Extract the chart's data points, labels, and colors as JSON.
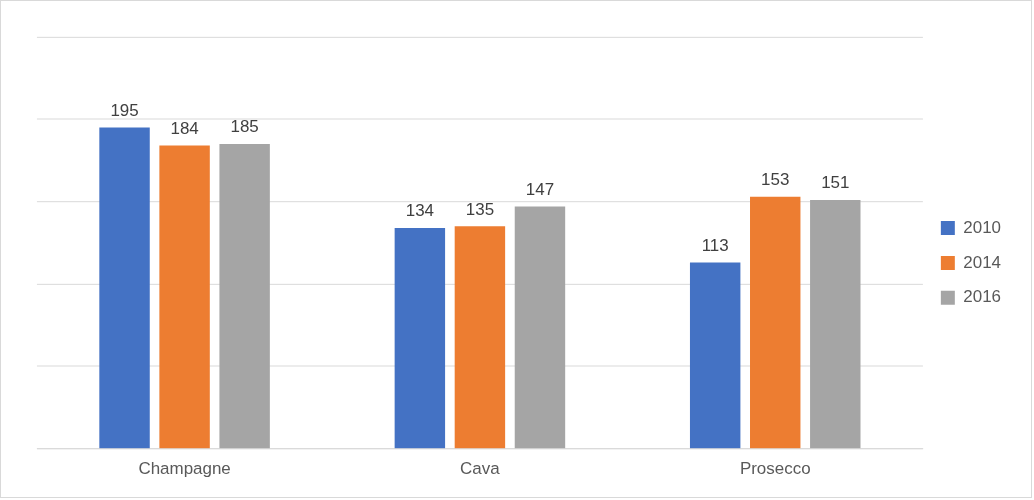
{
  "chart_data": {
    "type": "bar",
    "categories": [
      "Champagne",
      "Cava",
      "Prosecco"
    ],
    "series": [
      {
        "name": "2010",
        "color": "#4472c4",
        "values": [
          195,
          134,
          113
        ]
      },
      {
        "name": "2014",
        "color": "#ed7d31",
        "values": [
          184,
          135,
          153
        ]
      },
      {
        "name": "2016",
        "color": "#a5a5a5",
        "values": [
          185,
          147,
          151
        ]
      }
    ],
    "ylim": [
      0,
      250
    ],
    "yticks": [
      {
        "value": 0,
        "label": null
      },
      {
        "value": 50,
        "label": null
      },
      {
        "value": 100,
        "label": null
      },
      {
        "value": 150,
        "label": null
      },
      {
        "value": 200,
        "label": null
      },
      {
        "value": 250,
        "label": null
      }
    ],
    "tick_labels": "x",
    "grid": "y",
    "legend": "right",
    "data_labels": true
  }
}
